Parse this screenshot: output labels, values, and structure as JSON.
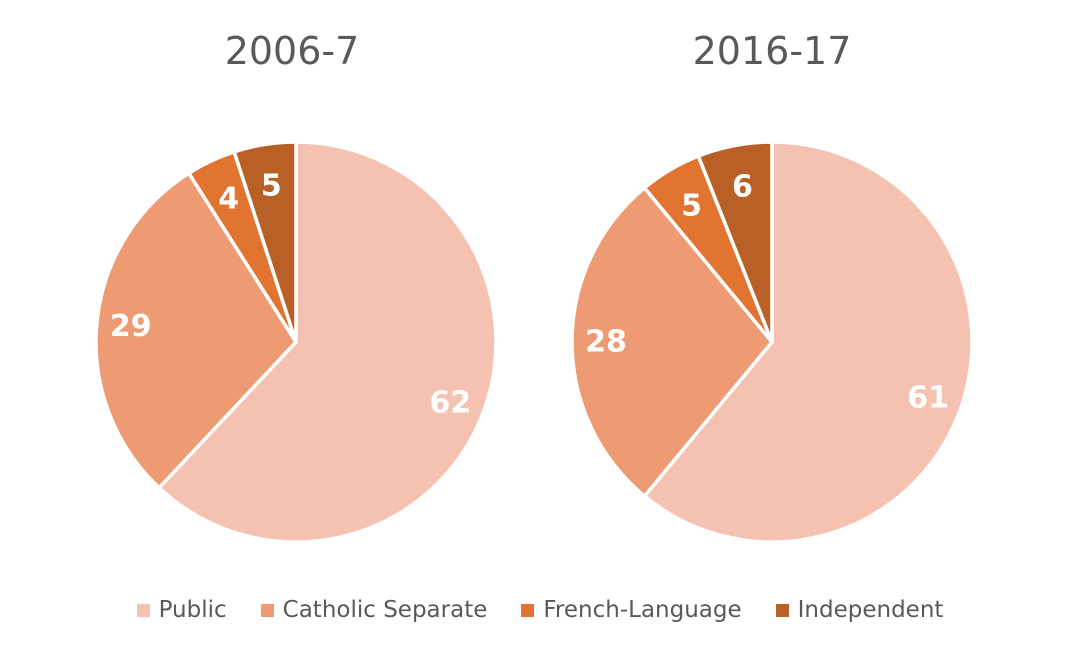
{
  "colors": {
    "Public": "#F5C2B2",
    "Catholic Separate": "#EE9A72",
    "French-Language": "#E07430",
    "Independent": "#B86026",
    "text": "#595959",
    "label": "#FFFFFF"
  },
  "legend": {
    "placement": "bottom",
    "items": [
      "Public",
      "Catholic Separate",
      "French-Language",
      "Independent"
    ]
  },
  "chart_data": [
    {
      "type": "pie",
      "title": "2006-7",
      "categories": [
        "Public",
        "Catholic Separate",
        "French-Language",
        "Independent"
      ],
      "values": [
        62,
        29,
        4,
        5
      ],
      "labels": [
        "62",
        "29",
        "4",
        "5"
      ]
    },
    {
      "type": "pie",
      "title": "2016-17",
      "categories": [
        "Public",
        "Catholic Separate",
        "French-Language",
        "Independent"
      ],
      "values": [
        61,
        28,
        5,
        6
      ],
      "labels": [
        "61",
        "28",
        "5",
        "6"
      ]
    }
  ]
}
